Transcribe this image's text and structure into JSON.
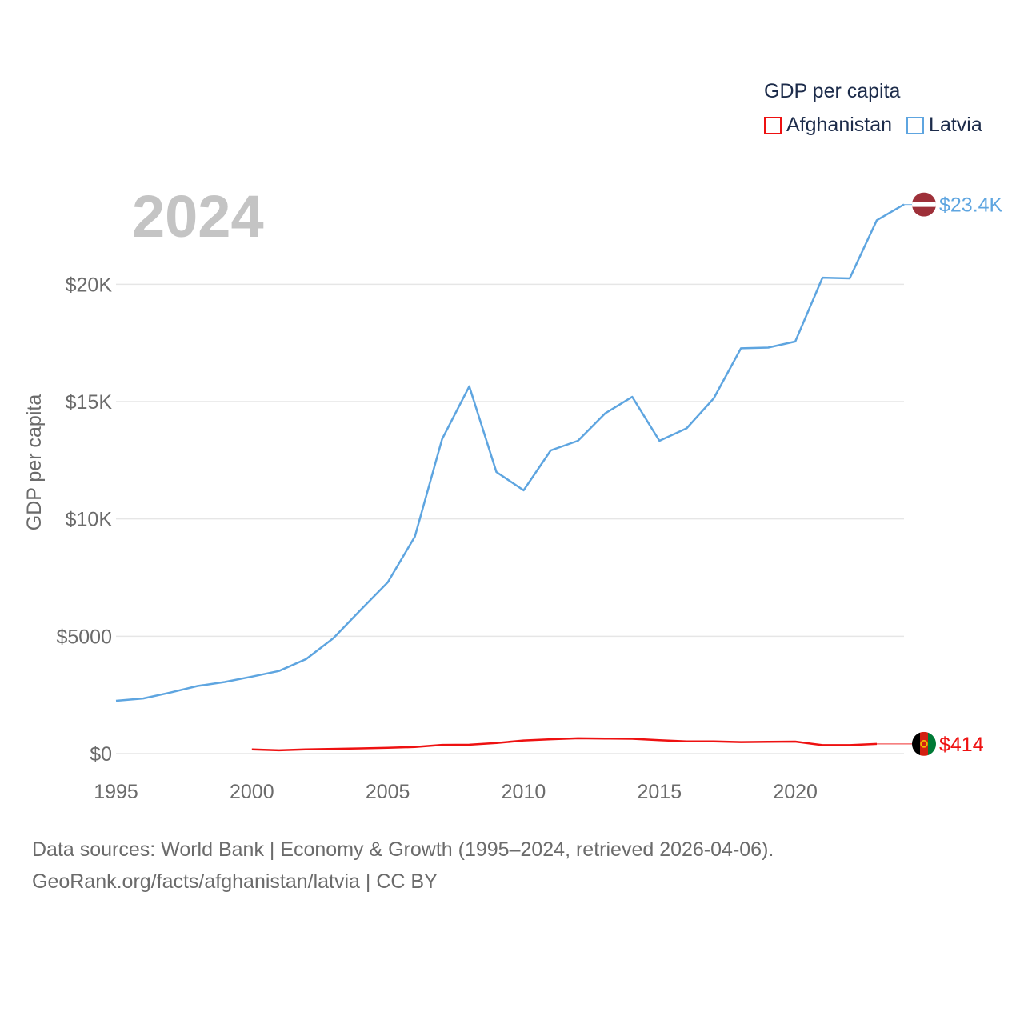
{
  "chart_data": {
    "type": "line",
    "title": "GDP per capita",
    "year_stamp": "2024",
    "xlabel": "",
    "ylabel": "GDP per capita",
    "xlim": [
      1995,
      2024
    ],
    "ylim": [
      0,
      24000
    ],
    "grid": true,
    "legend_position": "top-right",
    "x_ticks": [
      1995,
      2000,
      2005,
      2010,
      2015,
      2020
    ],
    "x_tick_labels": [
      "1995",
      "2000",
      "2005",
      "2010",
      "2015",
      "2020"
    ],
    "y_ticks": [
      0,
      5000,
      10000,
      15000,
      20000
    ],
    "y_tick_labels": [
      "$0",
      "$5000",
      "$10K",
      "$15K",
      "$20K"
    ],
    "series": [
      {
        "name": "Afghanistan",
        "color": "#ee1111",
        "end_label": "$414",
        "end_value": 414,
        "x": [
          2000,
          2001,
          2002,
          2003,
          2004,
          2005,
          2006,
          2007,
          2008,
          2009,
          2010,
          2011,
          2012,
          2013,
          2014,
          2015,
          2016,
          2017,
          2018,
          2019,
          2020,
          2021,
          2022,
          2023
        ],
        "values": [
          180,
          140,
          180,
          200,
          220,
          250,
          280,
          370,
          380,
          450,
          560,
          610,
          650,
          640,
          630,
          570,
          520,
          520,
          490,
          500,
          510,
          360,
          360,
          414
        ]
      },
      {
        "name": "Latvia",
        "color": "#5ea5e0",
        "end_label": "$23.4K",
        "end_value": 23400,
        "x": [
          1995,
          1996,
          1997,
          1998,
          1999,
          2000,
          2001,
          2002,
          2003,
          2004,
          2005,
          2006,
          2007,
          2008,
          2009,
          2010,
          2011,
          2012,
          2013,
          2014,
          2015,
          2016,
          2017,
          2018,
          2019,
          2020,
          2021,
          2022,
          2023,
          2024
        ],
        "values": [
          2250,
          2350,
          2600,
          2880,
          3050,
          3280,
          3520,
          4030,
          4920,
          6120,
          7300,
          9250,
          13400,
          15650,
          12000,
          11220,
          12920,
          13330,
          14500,
          15200,
          13330,
          13860,
          15140,
          17270,
          17300,
          17560,
          20280,
          20250,
          22730,
          23400
        ]
      }
    ]
  },
  "footer": {
    "line1": "Data sources: World Bank | Economy & Growth (1995–2024, retrieved 2026-04-06).",
    "line2": "GeoRank.org/facts/afghanistan/latvia | CC BY"
  }
}
